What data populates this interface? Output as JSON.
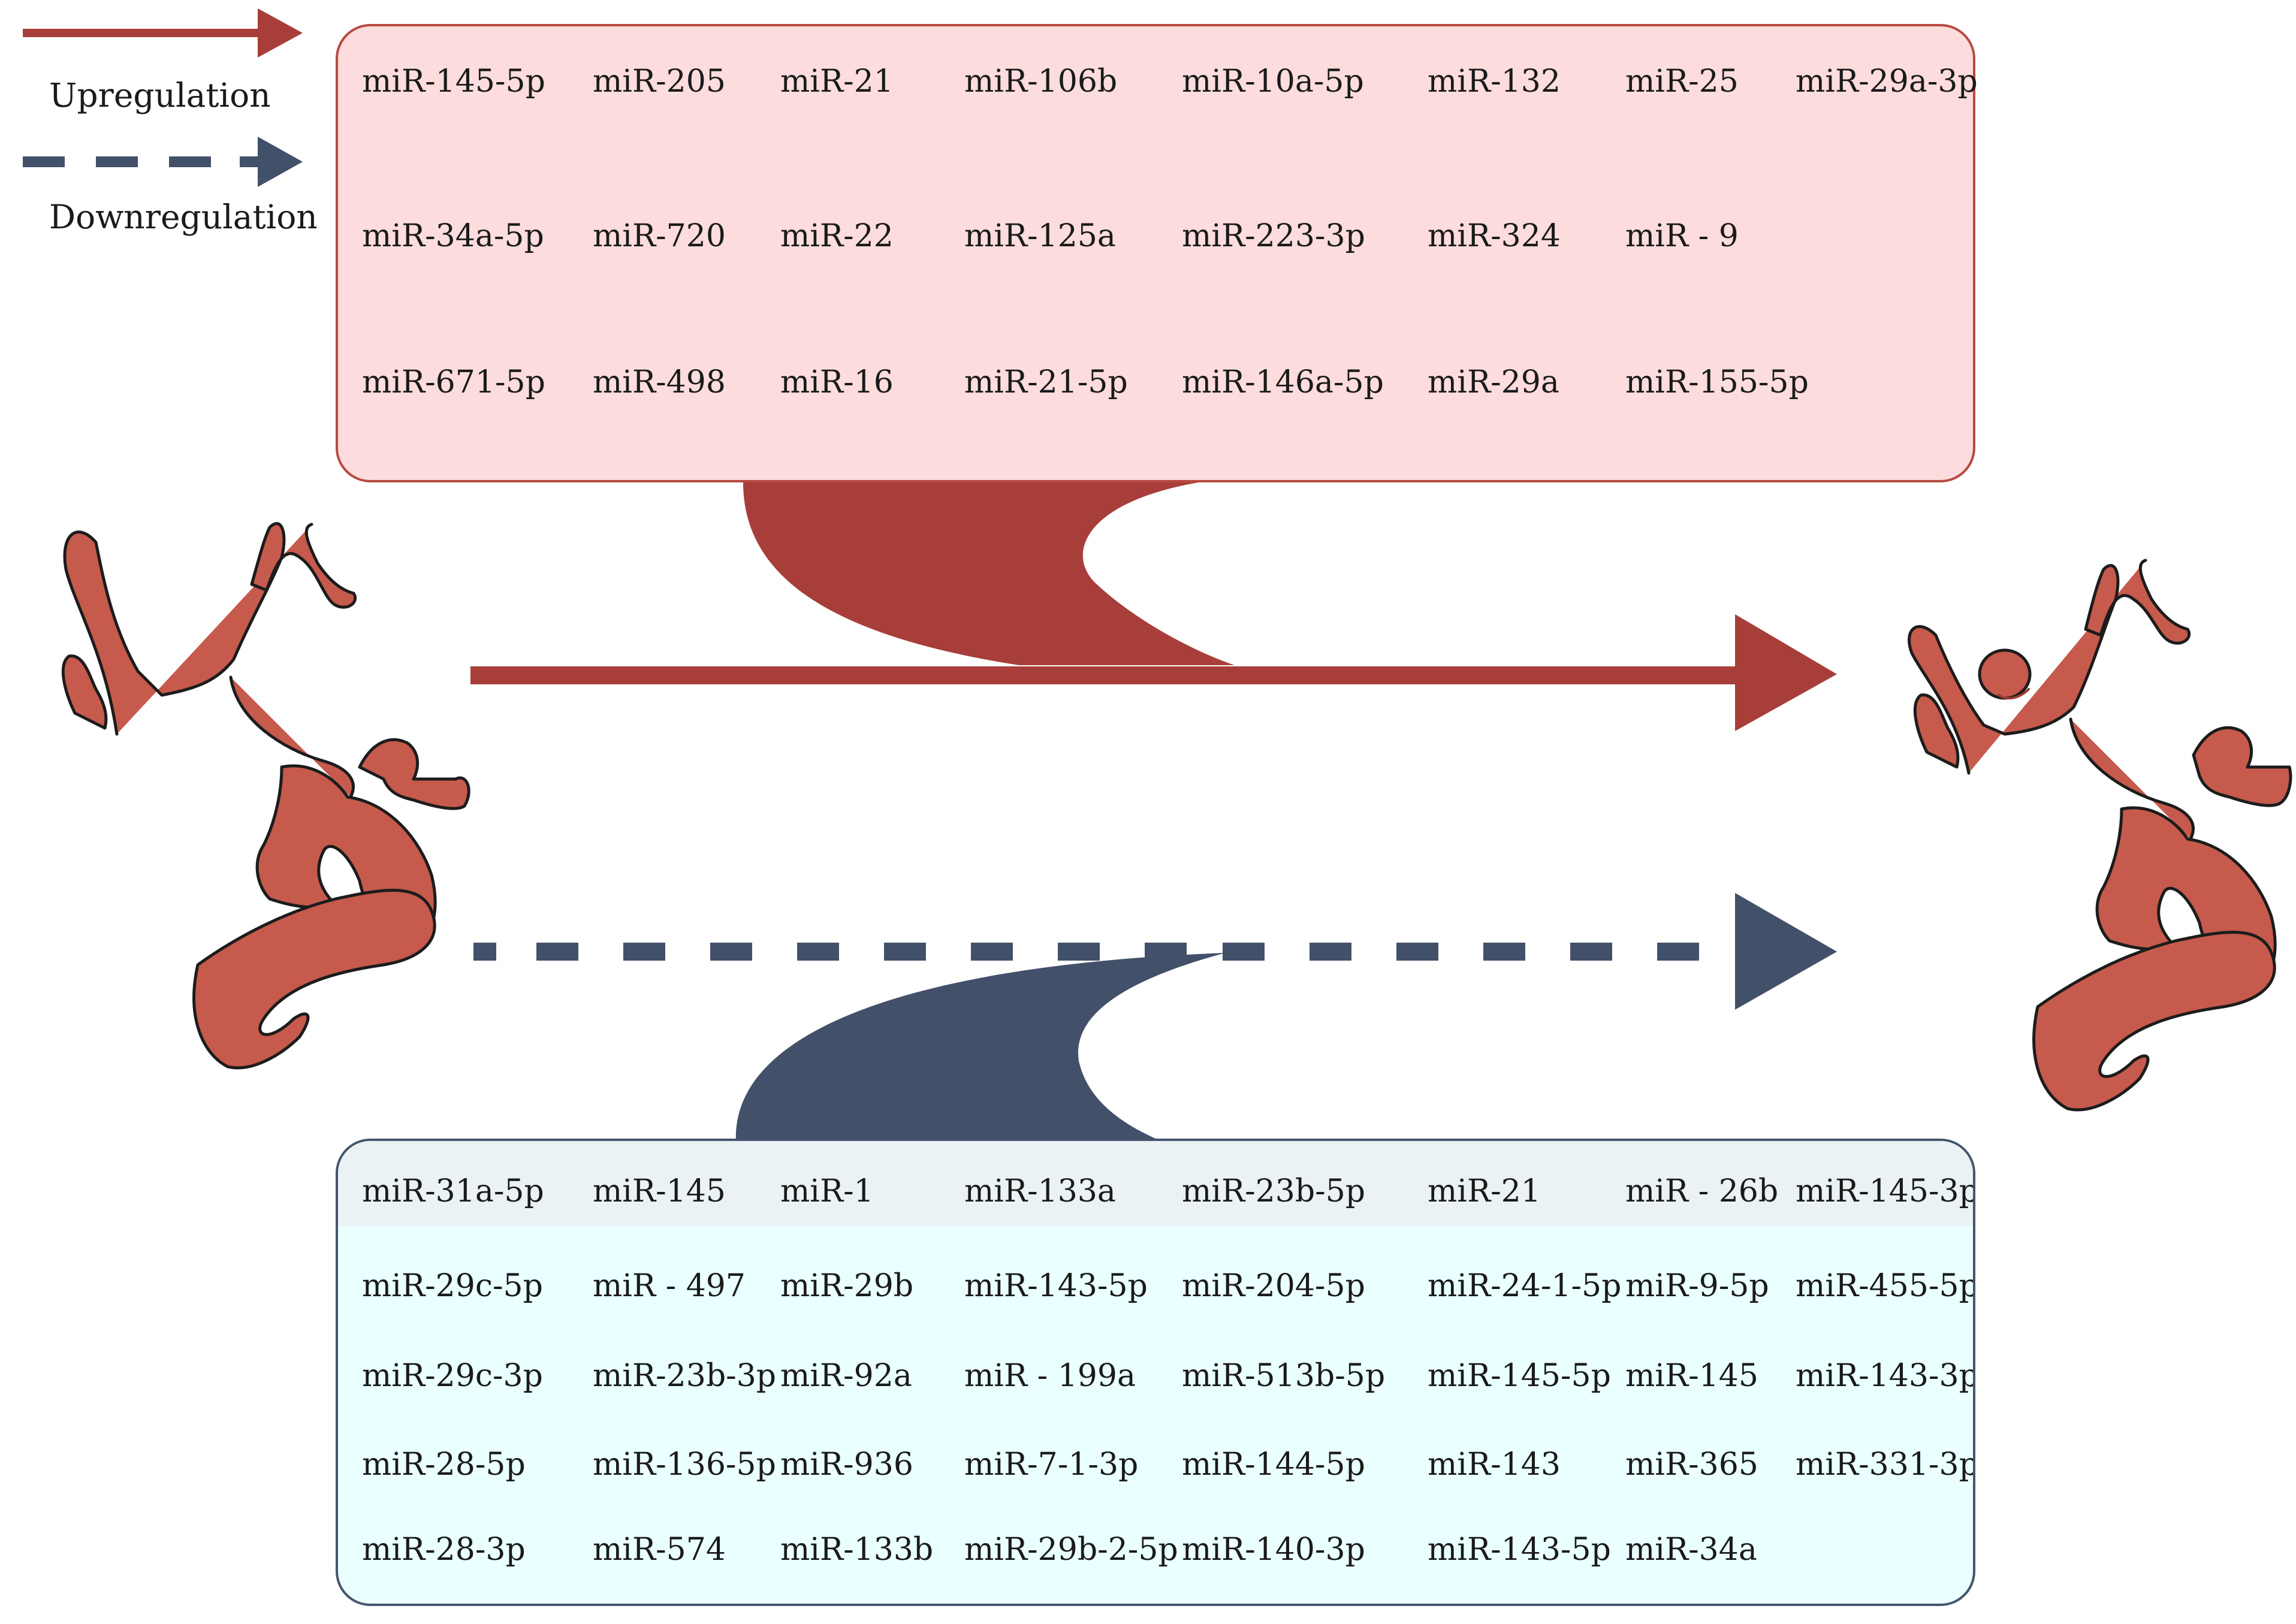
{
  "colors": {
    "up": "#a83e3a",
    "down": "#435069",
    "artery": "#c65a4c",
    "up_box_fill": "#fcdcdc",
    "down_box_fill": "#eaffff"
  },
  "legend": {
    "upregulation": "Upregulation",
    "downregulation": "Downregulation"
  },
  "upregulated": {
    "rows": [
      [
        "miR-145-5p",
        "miR-205",
        "miR-21",
        "miR-106b",
        "miR-10a-5p",
        "miR-132",
        "miR-25",
        "miR-29a-3p"
      ],
      [
        "miR-34a-5p",
        "miR-720",
        "miR-22",
        "miR-125a",
        "miR-223-3p",
        "miR-324",
        "miR - 9"
      ],
      [
        "miR-671-5p",
        "miR-498",
        "miR-16",
        "miR-21-5p",
        "miR-146a-5p",
        "miR-29a",
        "miR-155-5p"
      ]
    ]
  },
  "downregulated": {
    "rows": [
      [
        "miR-31a-5p",
        "miR-145",
        "miR-1",
        "miR-133a",
        "miR-23b-5p",
        "miR-21",
        "miR - 26b",
        "miR-145-3p"
      ],
      [
        "miR-29c-5p",
        "miR - 497",
        "miR-29b",
        "miR-143-5p",
        "miR-204-5p",
        "miR-24-1-5p",
        "miR-9-5p",
        "miR-455-5p"
      ],
      [
        "miR-29c-3p",
        "miR-23b-3p",
        "miR-92a",
        "miR - 199a",
        "miR-513b-5p",
        "miR-145-5p",
        "miR-145",
        "miR-143-3p"
      ],
      [
        "miR-28-5p",
        "miR-136-5p",
        "miR-936",
        "miR-7-1-3p",
        "miR-144-5p",
        "miR-143",
        "miR-365",
        "miR-331-3p"
      ],
      [
        "miR-28-3p",
        "miR-574",
        "miR-133b",
        "miR-29b-2-5p",
        "miR-140-3p",
        "miR-143-5p",
        "miR-34a"
      ]
    ]
  },
  "icons": [
    "artery-normal-icon",
    "artery-aneurysm-icon"
  ]
}
